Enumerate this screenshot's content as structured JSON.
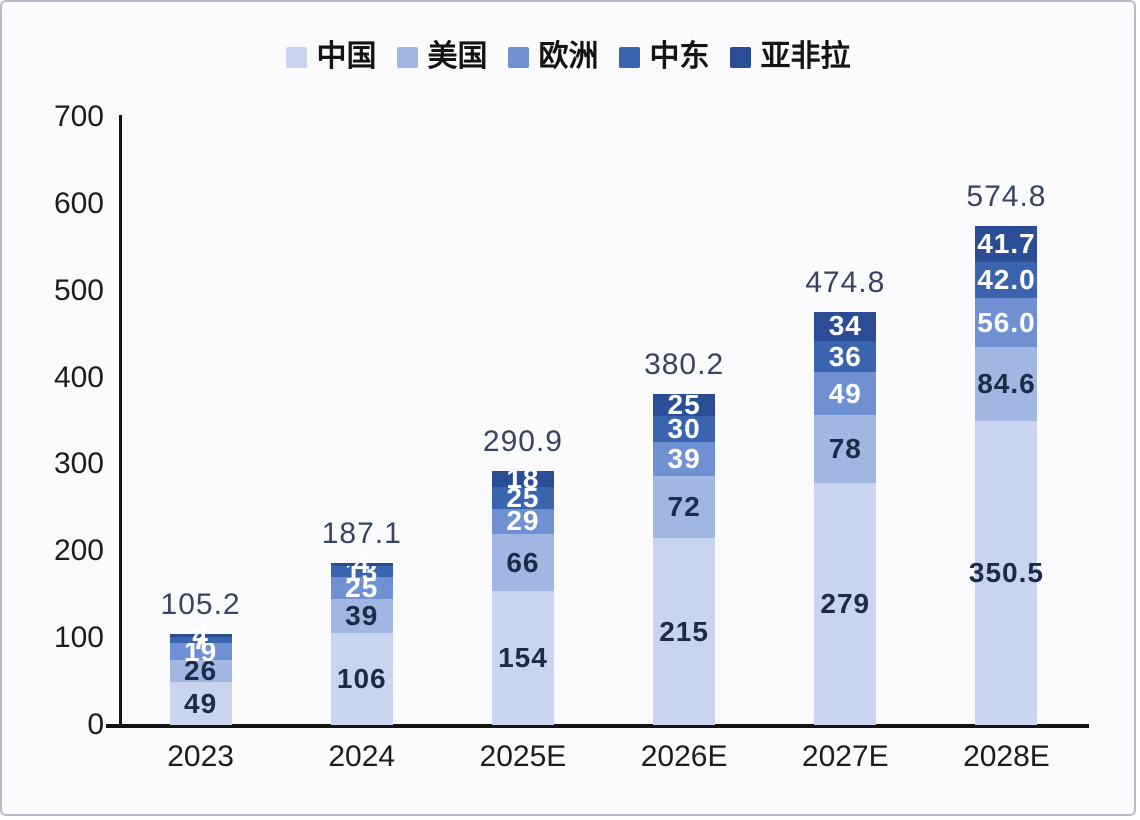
{
  "frame": {
    "background": "#fbfbfd",
    "border_color": "#b9bcc6",
    "axis_color": "#141414",
    "total_label_color": "#3a445e"
  },
  "chart_data": {
    "type": "bar",
    "stacked": true,
    "title": "",
    "xlabel": "",
    "ylabel": "",
    "categories": [
      "2023",
      "2024",
      "2025E",
      "2026E",
      "2027E",
      "2028E"
    ],
    "series": [
      {
        "name": "中国",
        "color": "#c9d4ee",
        "label_color": "#1c2b4a",
        "values": [
          49,
          106,
          154,
          215,
          279,
          350.5
        ],
        "labels": [
          "49",
          "106",
          "154",
          "215",
          "279",
          "350.5"
        ]
      },
      {
        "name": "美国",
        "color": "#a2b6e2",
        "label_color": "#1c2b4a",
        "values": [
          26,
          39,
          66,
          72,
          78,
          84.6
        ],
        "labels": [
          "26",
          "39",
          "66",
          "72",
          "78",
          "84.6"
        ]
      },
      {
        "name": "欧洲",
        "color": "#6f90d3",
        "label_color": "#ffffff",
        "values": [
          19,
          25,
          29,
          39,
          49,
          56.0
        ],
        "labels": [
          "19",
          "25",
          "29",
          "39",
          "49",
          "56.0"
        ]
      },
      {
        "name": "中东",
        "color": "#3a64ae",
        "label_color": "#ffffff",
        "values": [
          7,
          13,
          25,
          30,
          36,
          42.0
        ],
        "labels": [
          "7",
          "13",
          "25",
          "30",
          "36",
          "42.0"
        ]
      },
      {
        "name": "亚非拉",
        "color": "#2a4d96",
        "label_color": "#ffffff",
        "values": [
          4,
          4,
          18,
          25,
          34,
          41.7
        ],
        "labels": [
          "4",
          "4",
          "18",
          "25",
          "34",
          "41.7"
        ]
      }
    ],
    "totals": [
      105.2,
      187.1,
      290.9,
      380.2,
      474.8,
      574.8
    ],
    "total_labels": [
      "105.2",
      "187.1",
      "290.9",
      "380.2",
      "474.8",
      "574.8"
    ],
    "ylim": [
      0,
      700
    ],
    "yticks": [
      0,
      100,
      200,
      300,
      400,
      500,
      600,
      700
    ],
    "grid": false,
    "legend_position": "top"
  }
}
